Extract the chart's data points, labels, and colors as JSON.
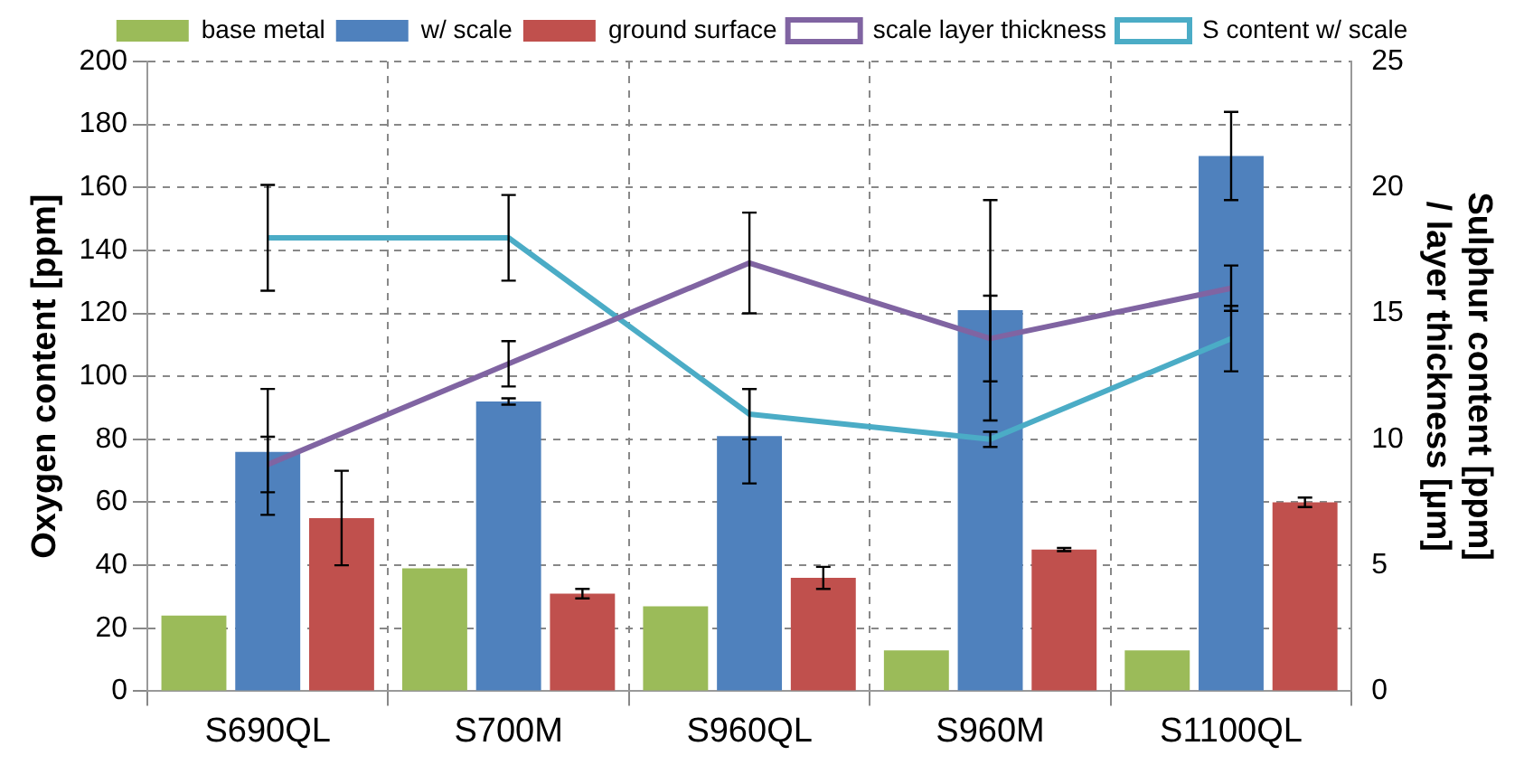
{
  "chart_data": {
    "type": "bar",
    "categories": [
      "S690QL",
      "S700M",
      "S960QL",
      "S960M",
      "S1100QL"
    ],
    "ylabel": "Oxygen content [ppm]",
    "y2label": "Sulphur content [ppm] / layer thickness [µm]",
    "ylim": [
      0,
      200
    ],
    "yticks": [
      0,
      20,
      40,
      60,
      80,
      100,
      120,
      140,
      160,
      180,
      200
    ],
    "y2lim": [
      0,
      25
    ],
    "y2ticks": [
      0,
      5,
      10,
      15,
      20,
      25
    ],
    "grid": true,
    "legend": "top",
    "series": [
      {
        "name": "base metal",
        "color": "#9bbb59",
        "values": [
          24,
          39,
          27,
          13,
          13
        ]
      },
      {
        "name": "w/ scale",
        "color": "#4f81bd",
        "values": [
          76,
          92,
          81,
          121,
          170
        ],
        "errors": [
          20,
          1,
          15,
          35,
          14
        ]
      },
      {
        "name": "ground surface",
        "color": "#c0504d",
        "values": [
          55,
          31,
          36,
          45,
          60
        ],
        "errors": [
          15,
          1.5,
          3.5,
          0.5,
          1.5
        ]
      },
      {
        "name": "scale layer thickness",
        "type": "line",
        "axis": "y2",
        "color": "#8064a2",
        "values": [
          9,
          13,
          17,
          14,
          16
        ],
        "errors": [
          1.1,
          0.9,
          2,
          1.7,
          0.9
        ]
      },
      {
        "name": "S content w/ scale",
        "type": "line",
        "axis": "y2",
        "color": "#4bacc6",
        "values": [
          18,
          18,
          11,
          10,
          14
        ],
        "errors": [
          2.1,
          1.7,
          1,
          0.3,
          1.3
        ]
      }
    ]
  }
}
